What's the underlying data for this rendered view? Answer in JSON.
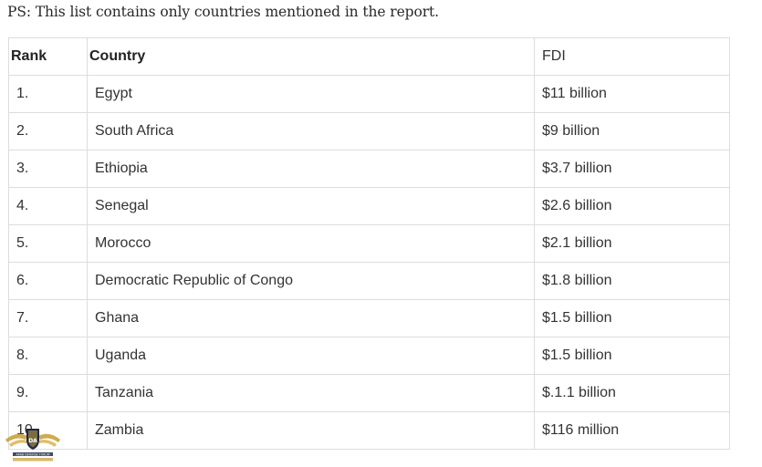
{
  "note": "PS: This list contains only countries mentioned in the report.",
  "table": {
    "headers": [
      "Rank",
      "Country",
      "FDI"
    ],
    "rows": [
      {
        "rank": "1.",
        "country": "Egypt",
        "fdi": "$11 billion"
      },
      {
        "rank": "2.",
        "country": "South Africa",
        "fdi": "$9 billion"
      },
      {
        "rank": "3.",
        "country": "Ethiopia",
        "fdi": "$3.7 billion"
      },
      {
        "rank": "4.",
        "country": "Senegal",
        "fdi": "$2.6 billion"
      },
      {
        "rank": "5.",
        "country": "Morocco",
        "fdi": "$2.1 billion"
      },
      {
        "rank": "6.",
        "country": "Democratic Republic of Congo",
        "fdi": "$1.8 billion"
      },
      {
        "rank": "7.",
        "country": "Ghana",
        "fdi": "$1.5 billion"
      },
      {
        "rank": "8.",
        "country": "Uganda",
        "fdi": "$1.5 billion"
      },
      {
        "rank": "9.",
        "country": "Tanzania",
        "fdi": "$.1.1 billion"
      },
      {
        "rank": "10.",
        "country": "Zambia",
        "fdi": "$116 million"
      }
    ]
  },
  "watermark": {
    "name": "ARAB DEFENSE FORUM",
    "name_ar": "المنتدى العربي للدفاع والتسليح",
    "colors": {
      "gold": "#c9a23a",
      "navy": "#1e2a4a"
    }
  }
}
